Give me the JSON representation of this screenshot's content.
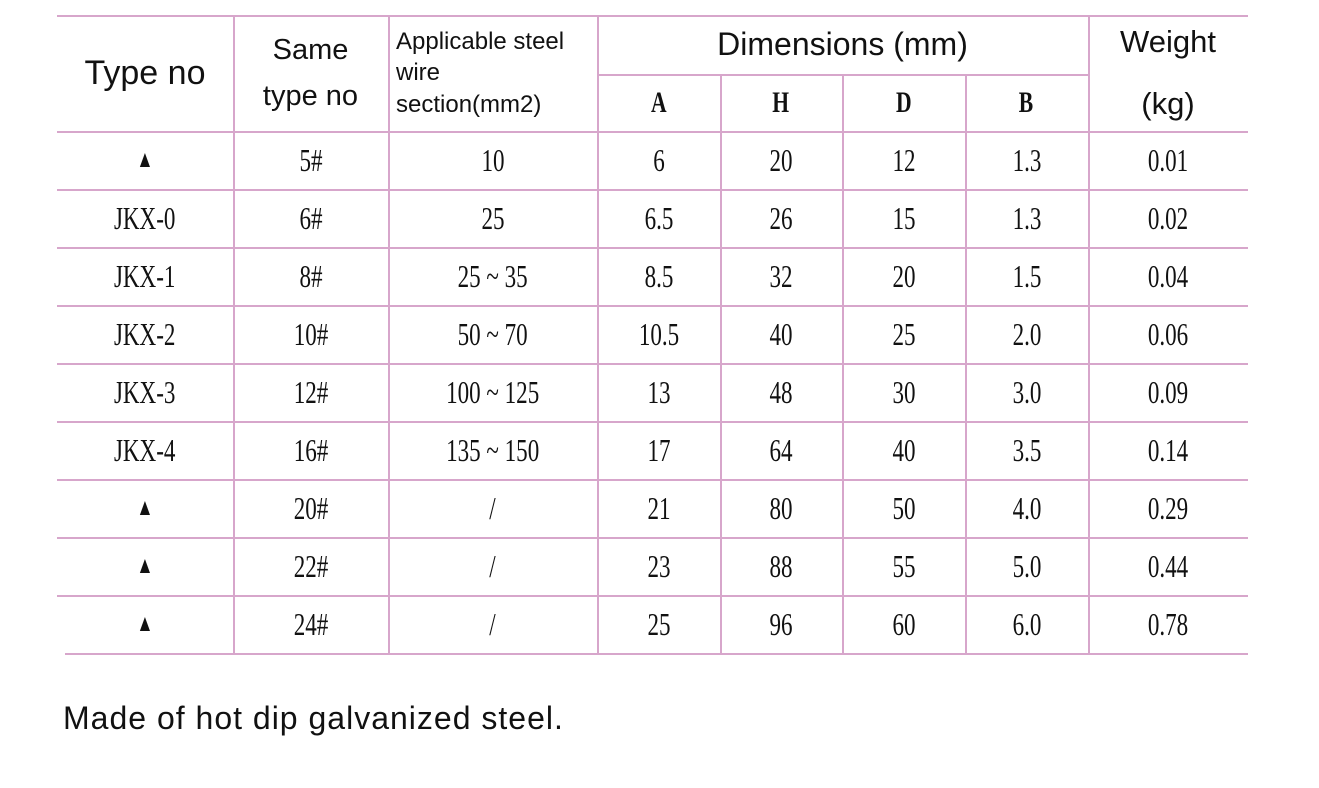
{
  "table": {
    "header": {
      "type_no": "Type no",
      "same_type_no": "Same type no",
      "section": "Applicable steel wire section(mm2)",
      "dimensions": "Dimensions (mm)",
      "weight": "Weight (kg)",
      "dims": [
        "A",
        "H",
        "D",
        "B"
      ]
    },
    "rows": [
      [
        "▲",
        "5#",
        "10",
        "6",
        "20",
        "12",
        "1.3",
        "0.01"
      ],
      [
        "JKX-0",
        "6#",
        "25",
        "6.5",
        "26",
        "15",
        "1.3",
        "0.02"
      ],
      [
        "JKX-1",
        "8#",
        "25 ~ 35",
        "8.5",
        "32",
        "20",
        "1.5",
        "0.04"
      ],
      [
        "JKX-2",
        "10#",
        "50 ~ 70",
        "10.5",
        "40",
        "25",
        "2.0",
        "0.06"
      ],
      [
        "JKX-3",
        "12#",
        "100 ~ 125",
        "13",
        "48",
        "30",
        "3.0",
        "0.09"
      ],
      [
        "JKX-4",
        "16#",
        "135 ~ 150",
        "17",
        "64",
        "40",
        "3.5",
        "0.14"
      ],
      [
        "▲",
        "20#",
        "/",
        "21",
        "80",
        "50",
        "4.0",
        "0.29"
      ],
      [
        "▲",
        "22#",
        "/",
        "23",
        "88",
        "55",
        "5.0",
        "0.44"
      ],
      [
        "▲",
        "24#",
        "/",
        "25",
        "96",
        "60",
        "6.0",
        "0.78"
      ]
    ]
  },
  "note": "Made of hot dip galvanized steel."
}
